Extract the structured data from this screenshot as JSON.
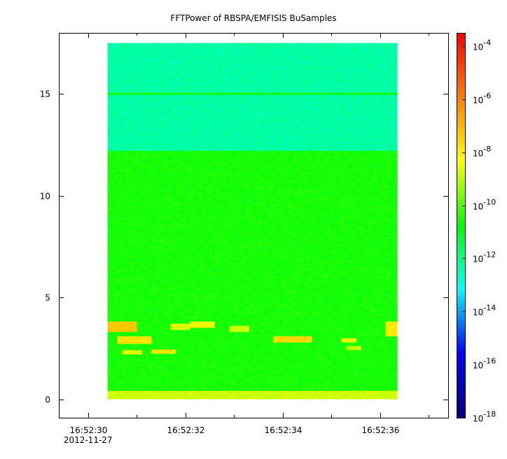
{
  "chart_data": {
    "type": "heatmap",
    "title": "FFTPower of RBSPA/EMFISIS  BuSamples",
    "xlabel": "",
    "ylabel": "",
    "x_tick_labels": [
      "16:52:30",
      "16:52:32",
      "16:52:34",
      "16:52:36"
    ],
    "x_ticks_seconds": [
      30,
      32,
      34,
      36
    ],
    "x_minor_ticks_seconds": [
      31,
      33,
      35,
      37
    ],
    "x_date_label": "2012-11-27",
    "xlim_seconds": [
      29.4,
      37.4
    ],
    "data_x_range_seconds": [
      30.4,
      36.35
    ],
    "y_ticks": [
      0,
      5,
      10,
      15
    ],
    "y_tick_labels": [
      "0",
      "5",
      "10",
      "15"
    ],
    "ylim": [
      -0.9,
      18.0
    ],
    "data_y_range": [
      0.0,
      17.5
    ],
    "colorbar": {
      "scale": "log",
      "range_exponents": [
        -18,
        -3.5
      ],
      "tick_exponents": [
        -18,
        -16,
        -14,
        -12,
        -10,
        -8,
        -6,
        -4
      ],
      "tick_base": "10"
    },
    "colormap_stops": [
      "#00007f",
      "#0000ff",
      "#00ffff",
      "#00ff00",
      "#ffff00",
      "#ff7f00",
      "#ff0000"
    ],
    "bands": [
      {
        "y": [
          12.2,
          17.5
        ],
        "level": -12.3
      },
      {
        "y": [
          0.4,
          12.2
        ],
        "level": -10.6
      },
      {
        "y": [
          0.0,
          0.4
        ],
        "level": -8.8
      }
    ],
    "line_features": [
      {
        "y": 15.0,
        "level": -10.7
      }
    ],
    "hot_patches": [
      {
        "x": [
          30.4,
          31.0
        ],
        "y": [
          3.3,
          3.8
        ],
        "level": -7.3
      },
      {
        "x": [
          30.6,
          31.3
        ],
        "y": [
          2.7,
          3.1
        ],
        "level": -7.8
      },
      {
        "x": [
          30.7,
          31.1
        ],
        "y": [
          2.2,
          2.4
        ],
        "level": -8.3
      },
      {
        "x": [
          31.3,
          31.8
        ],
        "y": [
          2.25,
          2.45
        ],
        "level": -8.0
      },
      {
        "x": [
          33.8,
          34.6
        ],
        "y": [
          2.8,
          3.1
        ],
        "level": -7.6
      },
      {
        "x": [
          35.2,
          35.5
        ],
        "y": [
          2.8,
          3.0
        ],
        "level": -8.2
      },
      {
        "x": [
          36.1,
          36.35
        ],
        "y": [
          3.1,
          3.8
        ],
        "level": -8.0
      },
      {
        "x": [
          31.7,
          32.1
        ],
        "y": [
          3.4,
          3.7
        ],
        "level": -8.6
      },
      {
        "x": [
          32.1,
          32.6
        ],
        "y": [
          3.5,
          3.8
        ],
        "level": -8.3
      },
      {
        "x": [
          32.9,
          33.3
        ],
        "y": [
          3.3,
          3.6
        ],
        "level": -8.8
      },
      {
        "x": [
          35.3,
          35.6
        ],
        "y": [
          2.4,
          2.6
        ],
        "level": -8.9
      }
    ]
  }
}
